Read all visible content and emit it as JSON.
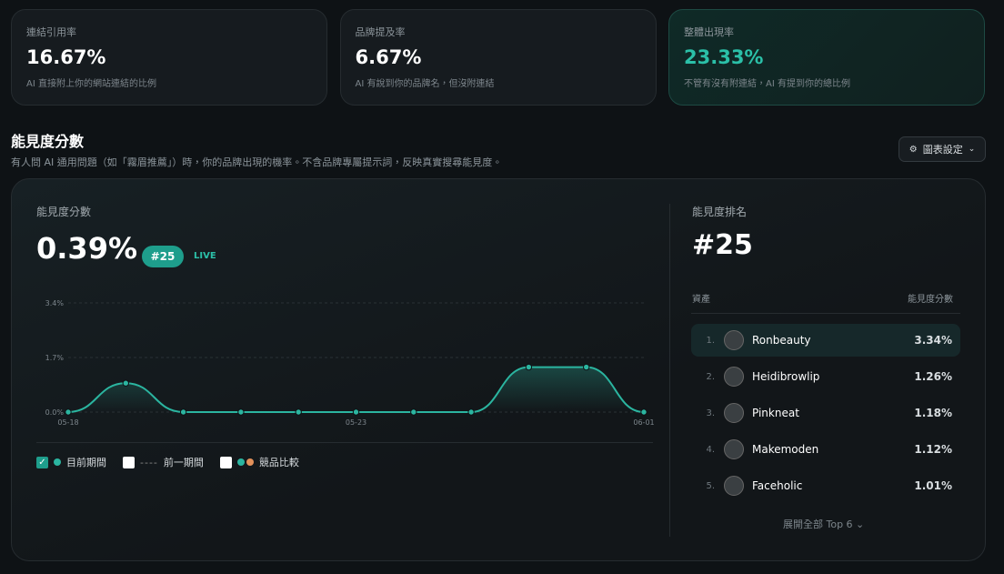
{
  "stats": [
    {
      "label": "連結引用率",
      "value": "16.67%",
      "desc": "AI 直接附上你的網站連結的比例"
    },
    {
      "label": "品牌提及率",
      "value": "6.67%",
      "desc": "AI 有說到你的品牌名，但沒附連結"
    },
    {
      "label": "整體出現率",
      "value": "23.33%",
      "desc": "不管有沒有附連結，AI 有提到你的總比例"
    }
  ],
  "section": {
    "title": "能見度分數",
    "subtitle": "有人問 AI 通用問題（如「霧眉推薦」）時，你的品牌出現的機率。不含品牌專屬提示詞，反映真實搜尋能見度。",
    "settings_button": "圖表設定"
  },
  "score": {
    "label": "能見度分數",
    "value": "0.39%",
    "rank_badge": "#25",
    "live": "LIVE"
  },
  "chart_data": {
    "type": "line",
    "categories": [
      "05-18",
      null,
      null,
      null,
      null,
      "05-23",
      null,
      null,
      null,
      null,
      "06-01"
    ],
    "series": [
      {
        "name": "目前期間",
        "color": "#2bb5a0",
        "values": [
          0,
          0.9,
          0,
          0,
          0,
          0,
          0,
          0,
          1.4,
          1.4,
          0
        ]
      }
    ],
    "ylim": [
      0,
      3.4
    ],
    "yticks": [
      {
        "value": 0,
        "label": "0.0%"
      },
      {
        "value": 1.7,
        "label": "1.7%"
      },
      {
        "value": 3.4,
        "label": "3.4%"
      }
    ],
    "grid": true
  },
  "legend": {
    "previous": "前一期間",
    "competitor": "競品比較",
    "current_checked": true
  },
  "ranking": {
    "title": "能見度排名",
    "rank": "#25",
    "columns": [
      "資產",
      "能見度分數"
    ],
    "rows": [
      {
        "rank": "1.",
        "name": "Ronbeauty",
        "score": "3.34%"
      },
      {
        "rank": "2.",
        "name": "Heidibrowlip",
        "score": "1.26%"
      },
      {
        "rank": "3.",
        "name": "Pinkneat",
        "score": "1.18%"
      },
      {
        "rank": "4.",
        "name": "Makemoden",
        "score": "1.12%"
      },
      {
        "rank": "5.",
        "name": "Faceholic",
        "score": "1.01%"
      }
    ],
    "expand": "展開全部 Top 6"
  }
}
